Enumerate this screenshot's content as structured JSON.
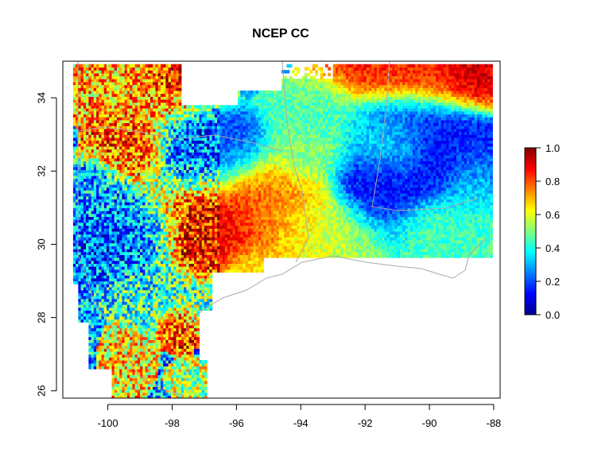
{
  "chart_data": {
    "type": "heatmap",
    "title": "NCEP CC",
    "x_ticks": [
      "-100",
      "-98",
      "-96",
      "-94",
      "-92",
      "-90",
      "-88"
    ],
    "x_tick_values": [
      -100,
      -98,
      -96,
      -94,
      -92,
      -90,
      -88
    ],
    "y_ticks": [
      "26",
      "28",
      "30",
      "32",
      "34"
    ],
    "y_tick_values": [
      26,
      28,
      30,
      32,
      34
    ],
    "xlim": [
      -101.4,
      -87.8
    ],
    "ylim": [
      25.8,
      35.0
    ],
    "colorbar": {
      "ticks": [
        "0.0",
        "0.2",
        "0.4",
        "0.6",
        "0.8",
        "1.0"
      ],
      "tick_values": [
        0.0,
        0.2,
        0.4,
        0.6,
        0.8,
        1.0
      ],
      "range": [
        0.0,
        1.0
      ],
      "colormap": [
        "#00008F",
        "#0000FF",
        "#0080FF",
        "#00FFFF",
        "#80FF80",
        "#FFFF00",
        "#FF8000",
        "#FF0000",
        "#800000"
      ]
    },
    "regions": [
      {
        "lon": -96.2,
        "lat": 30.6,
        "rx": 1.6,
        "ry": 1.1,
        "value": 0.9
      },
      {
        "lon": -97.0,
        "lat": 29.9,
        "rx": 0.8,
        "ry": 0.6,
        "value": 0.93
      },
      {
        "lon": -95.0,
        "lat": 31.0,
        "rx": 1.2,
        "ry": 0.9,
        "value": 0.72
      },
      {
        "lon": -94.0,
        "lat": 30.4,
        "rx": 1.0,
        "ry": 0.8,
        "value": 0.62
      },
      {
        "lon": -93.0,
        "lat": 30.3,
        "rx": 1.2,
        "ry": 0.7,
        "value": 0.55
      },
      {
        "lon": -91.5,
        "lat": 31.5,
        "rx": 1.0,
        "ry": 0.9,
        "value": 0.12
      },
      {
        "lon": -89.3,
        "lat": 32.3,
        "rx": 1.4,
        "ry": 0.9,
        "value": 0.1
      },
      {
        "lon": -90.5,
        "lat": 33.5,
        "rx": 1.2,
        "ry": 0.6,
        "value": 0.15
      },
      {
        "lon": -89.5,
        "lat": 30.5,
        "rx": 1.3,
        "ry": 0.6,
        "value": 0.45
      },
      {
        "lon": -88.7,
        "lat": 31.6,
        "rx": 0.8,
        "ry": 0.9,
        "value": 0.4
      },
      {
        "lon": -90.0,
        "lat": 34.4,
        "rx": 2.0,
        "ry": 0.6,
        "value": 0.85
      },
      {
        "lon": -88.6,
        "lat": 34.6,
        "rx": 0.6,
        "ry": 0.4,
        "value": 0.95
      },
      {
        "lon": -99.0,
        "lat": 34.3,
        "rx": 1.5,
        "ry": 0.7,
        "value": 0.7
      },
      {
        "lon": -97.9,
        "lat": 34.6,
        "rx": 0.6,
        "ry": 0.4,
        "value": 0.92
      },
      {
        "lon": -96.8,
        "lat": 32.4,
        "rx": 1.2,
        "ry": 0.8,
        "value": 0.2
      },
      {
        "lon": -99.3,
        "lat": 32.6,
        "rx": 0.8,
        "ry": 0.6,
        "value": 0.78
      },
      {
        "lon": -100.3,
        "lat": 31.4,
        "rx": 0.7,
        "ry": 0.6,
        "value": 0.3
      },
      {
        "lon": -99.4,
        "lat": 30.2,
        "rx": 1.2,
        "ry": 0.8,
        "value": 0.22
      },
      {
        "lon": -98.2,
        "lat": 28.7,
        "rx": 1.1,
        "ry": 0.7,
        "value": 0.42
      },
      {
        "lon": -97.8,
        "lat": 27.9,
        "rx": 0.45,
        "ry": 0.45,
        "value": 0.85
      },
      {
        "lon": -95.5,
        "lat": 29.3,
        "rx": 1.0,
        "ry": 0.6,
        "value": 0.58
      },
      {
        "lon": -96.6,
        "lat": 28.4,
        "rx": 0.8,
        "ry": 0.4,
        "value": 0.45
      },
      {
        "lon": -99.4,
        "lat": 26.8,
        "rx": 0.5,
        "ry": 0.6,
        "value": 0.65
      },
      {
        "lon": -97.4,
        "lat": 26.3,
        "rx": 0.45,
        "ry": 0.35,
        "value": 0.55
      },
      {
        "lon": -93.5,
        "lat": 33.6,
        "rx": 1.0,
        "ry": 0.6,
        "value": 0.45
      },
      {
        "lon": -91.2,
        "lat": 32.8,
        "rx": 1.0,
        "ry": 0.8,
        "value": 0.38
      },
      {
        "lon": -93.8,
        "lat": 32.5,
        "rx": 0.8,
        "ry": 0.6,
        "value": 0.5
      }
    ]
  }
}
